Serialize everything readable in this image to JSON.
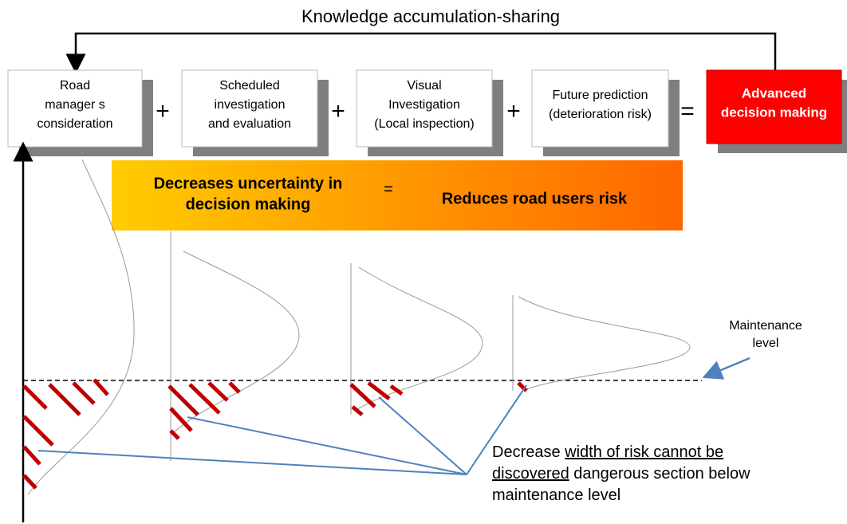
{
  "title": "Knowledge accumulation-sharing",
  "boxes": [
    {
      "lines": [
        "Road",
        "manager s",
        "consideration"
      ]
    },
    {
      "lines": [
        "Scheduled",
        "investigation",
        "and evaluation"
      ]
    },
    {
      "lines": [
        "Visual",
        "Investigation",
        "(Local inspection)"
      ]
    },
    {
      "lines": [
        "Future prediction",
        "(deterioration risk)"
      ]
    },
    {
      "lines": [
        "Advanced",
        "decision making"
      ]
    }
  ],
  "operators": [
    "+",
    "+",
    "+",
    "="
  ],
  "banner": {
    "left": [
      "Decreases uncertainty in",
      "decision making"
    ],
    "operator": "=",
    "right": "Reduces road users risk"
  },
  "maintenance_label": [
    "Maintenance",
    "level"
  ],
  "note": [
    [
      {
        "text": "Decrease "
      },
      {
        "text": "width of risk cannot be",
        "underline": true
      }
    ],
    [
      {
        "text": "discovered",
        "underline": true
      },
      {
        "text": " dangerous section below"
      }
    ],
    [
      {
        "text": "maintenance level"
      }
    ]
  ]
}
